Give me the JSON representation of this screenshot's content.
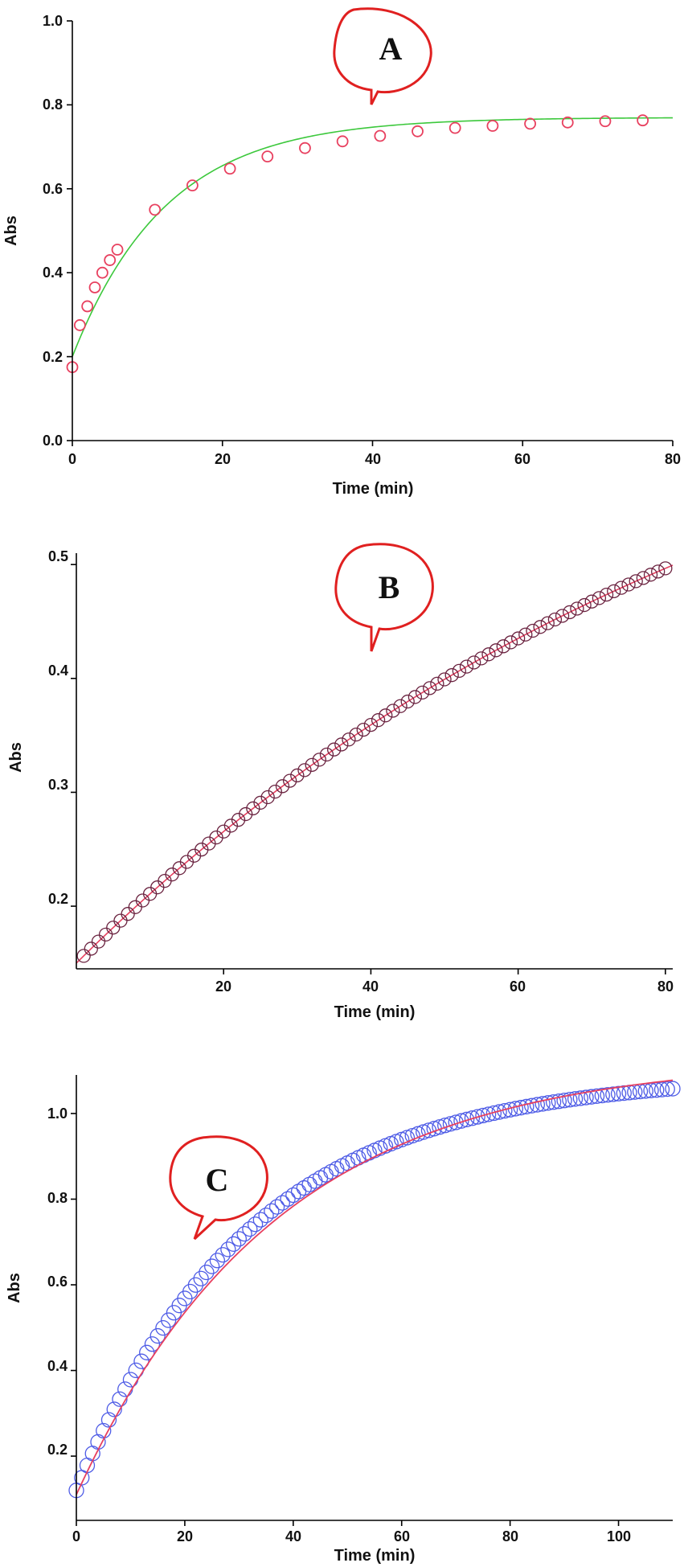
{
  "chart_data": [
    {
      "type": "scatter",
      "panel_label": "A",
      "xlabel": "Time (min)",
      "ylabel": "Abs",
      "xlim": [
        0,
        80
      ],
      "ylim": [
        0,
        1.0
      ],
      "xticks": [
        "0",
        "20",
        "40",
        "60",
        "80"
      ],
      "yticks": [
        "0.0",
        "0.2",
        "0.4",
        "0.6",
        "0.8",
        "1.0"
      ],
      "marker_color": "#e8405f",
      "fit_color": "#3cc83c",
      "points": {
        "x": [
          0,
          1,
          2,
          3,
          4,
          5,
          6,
          11,
          16,
          21,
          26,
          31,
          36,
          41,
          46,
          51,
          56,
          61,
          66,
          71,
          76
        ],
        "y": [
          0.175,
          0.275,
          0.32,
          0.365,
          0.4,
          0.43,
          0.455,
          0.55,
          0.608,
          0.648,
          0.677,
          0.697,
          0.713,
          0.726,
          0.737,
          0.745,
          0.75,
          0.755,
          0.758,
          0.761,
          0.763
        ]
      },
      "fit": {
        "model": "A_inf - (A_inf - A0) * exp(-k * t)",
        "A0": 0.2,
        "A_inf": 0.77,
        "k": 0.08
      }
    },
    {
      "type": "scatter",
      "panel_label": "B",
      "xlabel": "Time (min)",
      "ylabel": "Abs",
      "xlim": [
        0,
        81
      ],
      "ylim": [
        0.145,
        0.51
      ],
      "xticks": [
        "20",
        "40",
        "60",
        "80"
      ],
      "yticks": [
        "0.2",
        "0.3",
        "0.4",
        "0.5"
      ],
      "marker_color": "#6b2340",
      "fit_color": "#e8405f",
      "points": {
        "x_start": 1,
        "x_end": 80,
        "count": 80,
        "model": "A_inf - (A_inf - A0) * exp(-k * t)",
        "A0": 0.15,
        "A_inf": 0.76,
        "k": 0.0105
      },
      "fit": {
        "model": "A_inf - (A_inf - A0) * exp(-k * t)",
        "A0": 0.15,
        "A_inf": 0.76,
        "k": 0.0105
      }
    },
    {
      "type": "scatter",
      "panel_label": "C",
      "xlabel": "Time (min)",
      "ylabel": "Abs",
      "xlim": [
        0,
        110
      ],
      "ylim": [
        0.05,
        1.09
      ],
      "xticks": [
        "0",
        "20",
        "40",
        "60",
        "80",
        "100"
      ],
      "yticks": [
        "0.2",
        "0.4",
        "0.6",
        "0.8",
        "1.0"
      ],
      "marker_color": "#4e5ce6",
      "fit_color": "#e8405f",
      "points": {
        "x_start": 0,
        "x_end": 110,
        "count": 111,
        "model": "A_inf - (A_inf - A0) * exp(-k * t)",
        "A0": 0.12,
        "A_inf": 1.09,
        "k": 0.031
      },
      "fit": {
        "model": "A_inf - (A_inf - A0) * exp(-k * t)",
        "A0": 0.11,
        "A_inf": 1.13,
        "k": 0.027
      }
    }
  ]
}
